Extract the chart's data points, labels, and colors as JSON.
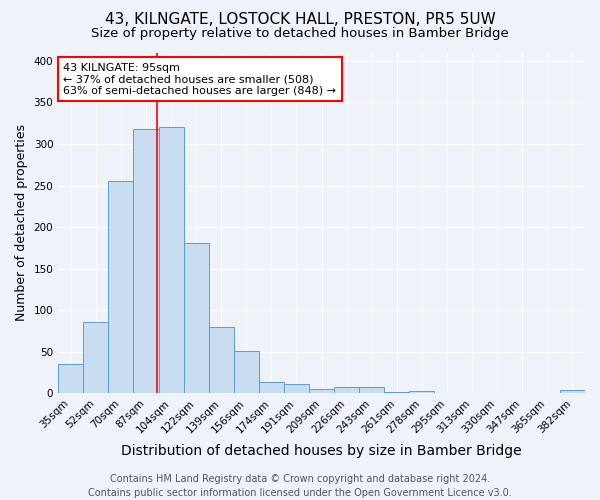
{
  "title": "43, KILNGATE, LOSTOCK HALL, PRESTON, PR5 5UW",
  "subtitle": "Size of property relative to detached houses in Bamber Bridge",
  "xlabel": "Distribution of detached houses by size in Bamber Bridge",
  "ylabel": "Number of detached properties",
  "categories": [
    "35sqm",
    "52sqm",
    "70sqm",
    "87sqm",
    "104sqm",
    "122sqm",
    "139sqm",
    "156sqm",
    "174sqm",
    "191sqm",
    "209sqm",
    "226sqm",
    "243sqm",
    "261sqm",
    "278sqm",
    "295sqm",
    "313sqm",
    "330sqm",
    "347sqm",
    "365sqm",
    "382sqm"
  ],
  "values": [
    35,
    86,
    255,
    318,
    320,
    181,
    80,
    51,
    14,
    11,
    5,
    8,
    8,
    2,
    3,
    1,
    1,
    1,
    1,
    1,
    4
  ],
  "bar_color": "#c9ddf0",
  "bar_edge_color": "#5b9bd5",
  "background_color": "#eef2f9",
  "grid_color": "#ffffff",
  "annotation_text": "43 KILNGATE: 95sqm\n← 37% of detached houses are smaller (508)\n63% of semi-detached houses are larger (848) →",
  "annotation_box_color": "white",
  "annotation_box_edge_color": "red",
  "footer_line1": "Contains HM Land Registry data © Crown copyright and database right 2024.",
  "footer_line2": "Contains public sector information licensed under the Open Government Licence v3.0.",
  "ylim": [
    0,
    410
  ],
  "red_line_index": 3.45,
  "title_fontsize": 11,
  "subtitle_fontsize": 9.5,
  "xlabel_fontsize": 10,
  "ylabel_fontsize": 9,
  "tick_fontsize": 7.5,
  "footer_fontsize": 7
}
